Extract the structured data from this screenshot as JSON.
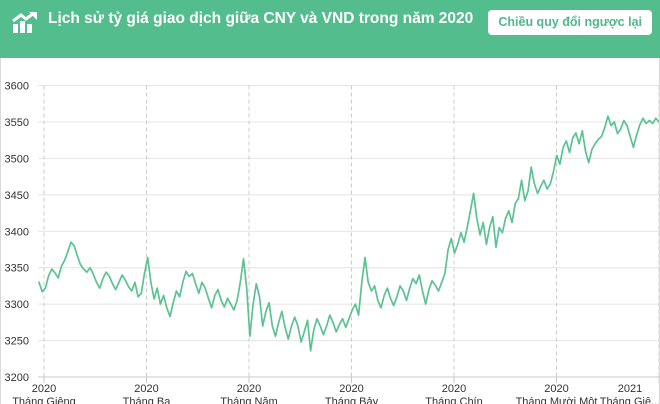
{
  "header": {
    "title": "Lịch sử tỷ giá giao dịch giữa CNY và VND trong năm 2020",
    "button_label": "Chiều quy đổi ngược lại",
    "bg_color": "#54bd8e",
    "text_color": "#ffffff",
    "button_text_color": "#4eb88a",
    "icon": "trending-up-chart-icon"
  },
  "chart_data": {
    "type": "line",
    "title": "",
    "xlabel": "",
    "ylabel": "",
    "ylim": [
      3200,
      3600
    ],
    "grid": true,
    "legend": "none",
    "line_color": "#5cc291",
    "grid_color": "#e4e4e4",
    "month_line_color": "#cccccc",
    "axis_color": "#c9c9c9",
    "label_color": "#333333",
    "y_ticks": [
      3600,
      3550,
      3500,
      3450,
      3400,
      3350,
      3300,
      3250,
      3200
    ],
    "x_ticks": [
      {
        "year": "2020",
        "month": "Tháng Giêng"
      },
      {
        "year": "2020",
        "month": "Tháng Ba"
      },
      {
        "year": "2020",
        "month": "Tháng Năm"
      },
      {
        "year": "2020",
        "month": "Tháng Bảy"
      },
      {
        "year": "2020",
        "month": "Tháng Chín"
      },
      {
        "year": "2020",
        "month": "Tháng Mười Một"
      },
      {
        "year": "2021",
        "month": "Tháng Giê..."
      }
    ],
    "series_name": "CNY/VND",
    "values": [
      3330,
      3317,
      3322,
      3339,
      3348,
      3343,
      3336,
      3352,
      3360,
      3372,
      3385,
      3380,
      3366,
      3354,
      3348,
      3344,
      3350,
      3341,
      3330,
      3322,
      3335,
      3344,
      3338,
      3328,
      3320,
      3330,
      3340,
      3333,
      3324,
      3318,
      3330,
      3310,
      3315,
      3342,
      3364,
      3330,
      3307,
      3322,
      3300,
      3312,
      3295,
      3283,
      3302,
      3318,
      3310,
      3330,
      3345,
      3338,
      3342,
      3328,
      3315,
      3330,
      3322,
      3308,
      3295,
      3312,
      3320,
      3305,
      3296,
      3308,
      3300,
      3292,
      3305,
      3330,
      3362,
      3322,
      3256,
      3300,
      3328,
      3310,
      3270,
      3290,
      3302,
      3270,
      3256,
      3275,
      3290,
      3268,
      3252,
      3270,
      3282,
      3270,
      3248,
      3262,
      3278,
      3236,
      3265,
      3280,
      3270,
      3258,
      3270,
      3285,
      3275,
      3262,
      3272,
      3280,
      3268,
      3280,
      3292,
      3300,
      3285,
      3330,
      3364,
      3330,
      3318,
      3325,
      3305,
      3295,
      3312,
      3322,
      3308,
      3298,
      3310,
      3325,
      3318,
      3305,
      3322,
      3335,
      3328,
      3340,
      3318,
      3300,
      3320,
      3332,
      3326,
      3318,
      3330,
      3342,
      3375,
      3390,
      3370,
      3382,
      3398,
      3385,
      3405,
      3428,
      3452,
      3418,
      3395,
      3412,
      3382,
      3405,
      3420,
      3378,
      3405,
      3398,
      3418,
      3428,
      3412,
      3438,
      3445,
      3470,
      3442,
      3455,
      3488,
      3465,
      3452,
      3462,
      3470,
      3458,
      3465,
      3482,
      3504,
      3492,
      3515,
      3524,
      3508,
      3528,
      3535,
      3520,
      3538,
      3510,
      3494,
      3512,
      3520,
      3526,
      3530,
      3542,
      3558,
      3545,
      3550,
      3534,
      3540,
      3552,
      3545,
      3530,
      3515,
      3532,
      3546,
      3555,
      3548,
      3552,
      3548,
      3555,
      3550
    ]
  }
}
